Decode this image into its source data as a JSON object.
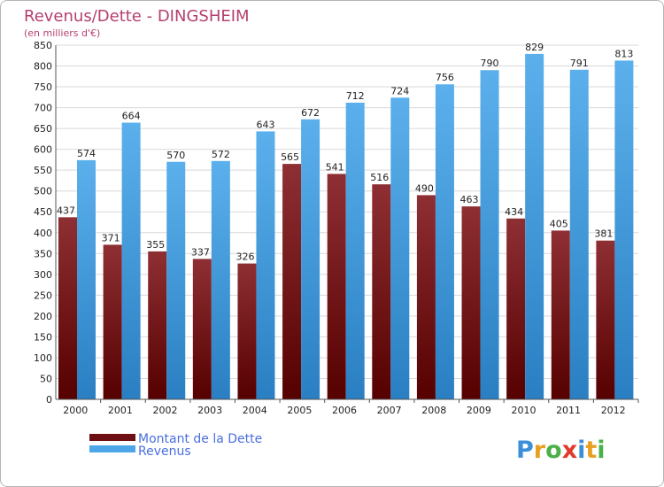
{
  "chart_data": {
    "type": "bar",
    "title": "Revenus/Dette - DINGSHEIM",
    "subtitle": "(en milliers d'€)",
    "categories": [
      "2000",
      "2001",
      "2002",
      "2003",
      "2004",
      "2005",
      "2006",
      "2007",
      "2008",
      "2009",
      "2010",
      "2011",
      "2012"
    ],
    "series": [
      {
        "name": "Montant de la Dette",
        "color": "#7a1e22",
        "values": [
          437,
          371,
          355,
          337,
          326,
          565,
          541,
          516,
          490,
          463,
          434,
          405,
          381
        ]
      },
      {
        "name": "Revenus",
        "color": "#4da6e8",
        "values": [
          574,
          664,
          570,
          572,
          643,
          672,
          712,
          724,
          756,
          790,
          829,
          791,
          813
        ]
      }
    ],
    "ylim": [
      0,
      850
    ],
    "ytick_step": 50,
    "grid": true,
    "legend_position": "bottom-left"
  },
  "logo": {
    "letters": [
      "P",
      "r",
      "o",
      "x",
      "i",
      "t",
      "i"
    ]
  }
}
